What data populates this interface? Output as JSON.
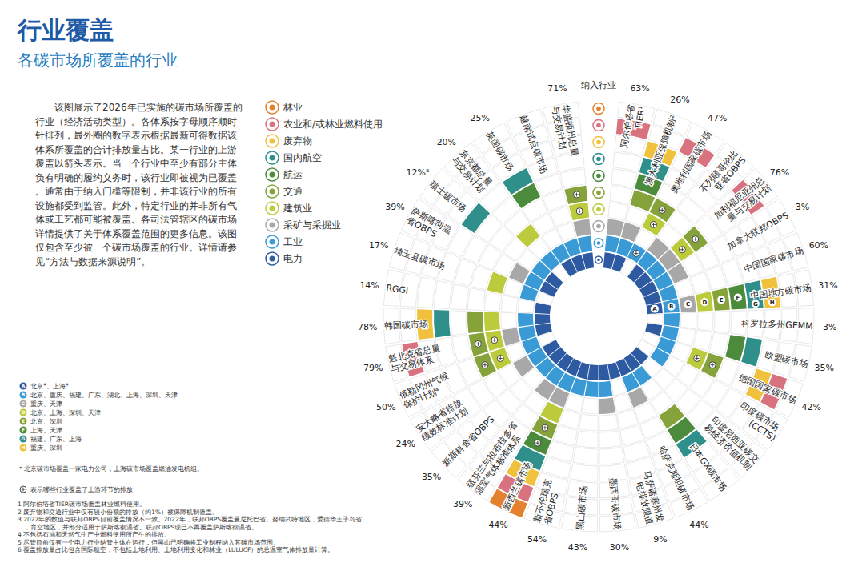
{
  "chart_data": {
    "type": "radial_matrix",
    "title": "行业覆盖",
    "subtitle": "各碳市场所覆盖的行业",
    "description": "该图展示了2026年已实施的碳市场所覆盖的行业（经济活动类型）。各体系按字母顺序顺时针排列，最外圈的数字表示根据最新可得数据该体系所覆盖的合计排放量占比。某一行业的上游覆盖以箭头表示。当一个行业中至少有部分主体负有明确的履约义务时，该行业即被视为已覆盖。通常由于纳入门槛等限制，并非该行业的所有设施都受到监管。此外，特定行业的并非所有气体或工艺都可能被覆盖。各司法管辖区的碳市场详情提供了关于体系覆盖范围的更多信息。该图仅包含至少被一个碳市场覆盖的行业。详情请参见“方法与数据来源说明”。",
    "header_label": "纳入行业",
    "sectors": [
      {
        "name": "电力",
        "color": "#2d5aa0"
      },
      {
        "name": "工业",
        "color": "#3a9ad6"
      },
      {
        "name": "采矿与采掘业",
        "color": "#a8a8a8"
      },
      {
        "name": "建筑业",
        "color": "#bccb3c"
      },
      {
        "name": "交通",
        "color": "#86a33b"
      },
      {
        "name": "航运",
        "color": "#4b8b3b"
      },
      {
        "name": "国内航空",
        "color": "#2f8f8a"
      },
      {
        "name": "废弃物",
        "color": "#efc13c"
      },
      {
        "name": "农业和/或林业燃料使用",
        "color": "#d9727f"
      },
      {
        "name": "林业",
        "color": "#e3812e"
      }
    ],
    "categories": [
      "阿尔伯塔省TIER¹",
      "澳大利亚保障机制²",
      "奥地利国家碳市场",
      "不列颠哥伦比亚省OBPS",
      "加利福尼亚州总量与交易计划",
      "加拿大联邦OBPS",
      "中国国家碳市场",
      "中国地方碳市场",
      "科罗拉多州GEMM",
      "欧盟碳市场",
      "德国国家碳市场",
      "印度碳市场 (CCTS)",
      "印度尼西亚碳交易经济价值机制",
      "日本GX碳市场",
      "哈萨克斯坦碳市场",
      "马萨诸塞州发电排放限值",
      "墨西哥碳市场",
      "黑山碳市场",
      "新不伦瑞克省OBPS",
      "新西兰碳市场",
      "纽芬兰与拉布拉多省温室气体标准体系",
      "新斯科舍省OBPS",
      "安大略省排放绩效标准计划",
      "俄勒冈州气候保护计划⁴",
      "魁北克省总量与交易体系",
      "韩国碳市场",
      "RGGI",
      "埼玉县碳市场",
      "萨斯喀彻温省OBPS",
      "瑞士碳市场",
      "东京都总量与交易计划",
      "英国碳市场",
      "越南试点碳市场",
      "华盛顿州总量与交易计划"
    ],
    "values": [
      63,
      26,
      47,
      null,
      76,
      3,
      60,
      31,
      3,
      35,
      42,
      null,
      null,
      null,
      44,
      9,
      30,
      43,
      54,
      44,
      39,
      35,
      24,
      50,
      79,
      78,
      14,
      17,
      39,
      12,
      20,
      25,
      null,
      71
    ],
    "value_labels": [
      "63%",
      "26%",
      "47%",
      null,
      "76%",
      "3%",
      "60%",
      "31%",
      "3%",
      "35%",
      "42%",
      null,
      null,
      null,
      "44%",
      "9%",
      "30%",
      "43%",
      "54%",
      "44%",
      "39%",
      "35%",
      "24%",
      "50%",
      "79%",
      "78%",
      "14%",
      "17%",
      "39%",
      "12%⁶",
      "20%",
      "25%",
      null,
      "71%"
    ],
    "coverage": [
      [
        1,
        1,
        1,
        0,
        0,
        0,
        0,
        0,
        1,
        0
      ],
      [
        1,
        1,
        1,
        0,
        1,
        1,
        1,
        1,
        0,
        0
      ],
      [
        0,
        1,
        0,
        1,
        1,
        0,
        0,
        0,
        1,
        0
      ],
      [
        1,
        1,
        1,
        0,
        0,
        0,
        0,
        0,
        0,
        0
      ],
      [
        1,
        1,
        1,
        1,
        1,
        0,
        0,
        0,
        1,
        0
      ],
      [
        1,
        1,
        1,
        0,
        0,
        0,
        0,
        0,
        0,
        0
      ],
      [
        1,
        1,
        0,
        0,
        0,
        0,
        0,
        0,
        0,
        0
      ],
      [
        1,
        1,
        1,
        1,
        1,
        1,
        1,
        1,
        0,
        0
      ],
      [
        0,
        1,
        0,
        0,
        0,
        0,
        0,
        0,
        0,
        0
      ],
      [
        1,
        1,
        0,
        0,
        0,
        1,
        1,
        0,
        0,
        0
      ],
      [
        0,
        1,
        0,
        1,
        1,
        0,
        0,
        1,
        1,
        0
      ],
      [
        0,
        1,
        0,
        0,
        0,
        0,
        0,
        0,
        0,
        0
      ],
      [
        1,
        0,
        0,
        0,
        0,
        0,
        0,
        0,
        0,
        0
      ],
      [
        1,
        1,
        0,
        0,
        1,
        1,
        1,
        0,
        0,
        0
      ],
      [
        1,
        1,
        1,
        0,
        0,
        0,
        0,
        0,
        0,
        0
      ],
      [
        1,
        0,
        0,
        0,
        0,
        0,
        0,
        0,
        0,
        0
      ],
      [
        1,
        1,
        1,
        0,
        0,
        0,
        0,
        0,
        0,
        0
      ],
      [
        1,
        1,
        0,
        0,
        0,
        0,
        0,
        0,
        0,
        0
      ],
      [
        1,
        1,
        0,
        0,
        0,
        0,
        0,
        0,
        0,
        0
      ],
      [
        1,
        1,
        1,
        1,
        1,
        1,
        1,
        1,
        1,
        1
      ],
      [
        1,
        1,
        1,
        0,
        0,
        0,
        0,
        0,
        0,
        0
      ],
      [
        1,
        1,
        0,
        0,
        0,
        0,
        0,
        0,
        0,
        0
      ],
      [
        1,
        1,
        1,
        0,
        0,
        0,
        0,
        0,
        0,
        0
      ],
      [
        0,
        1,
        0,
        1,
        1,
        0,
        0,
        0,
        0,
        0
      ],
      [
        1,
        1,
        1,
        1,
        1,
        0,
        0,
        0,
        1,
        0
      ],
      [
        1,
        1,
        0,
        1,
        1,
        0,
        1,
        1,
        0,
        0
      ],
      [
        1,
        0,
        0,
        0,
        0,
        0,
        0,
        0,
        0,
        0
      ],
      [
        0,
        1,
        0,
        1,
        0,
        0,
        0,
        0,
        0,
        0
      ],
      [
        1,
        1,
        1,
        0,
        0,
        0,
        0,
        0,
        0,
        0
      ],
      [
        1,
        1,
        0,
        0,
        0,
        0,
        1,
        0,
        0,
        0
      ],
      [
        0,
        1,
        0,
        1,
        0,
        0,
        0,
        0,
        0,
        0
      ],
      [
        1,
        1,
        0,
        0,
        0,
        1,
        1,
        0,
        0,
        0
      ],
      [
        1,
        1,
        0,
        0,
        0,
        0,
        0,
        0,
        0,
        0
      ],
      [
        1,
        1,
        1,
        1,
        1,
        0,
        0,
        0,
        0,
        0
      ]
    ],
    "upstream": [
      [],
      [],
      [
        1,
        3,
        4
      ],
      [],
      [
        3,
        4
      ],
      [],
      [],
      [],
      [],
      [],
      [
        3,
        4
      ],
      [],
      [],
      [],
      [],
      [],
      [],
      [],
      [],
      [
        4,
        5
      ],
      [],
      [],
      [],
      [
        3,
        4
      ],
      [
        3,
        4
      ],
      [],
      [],
      [],
      [],
      [],
      [],
      [],
      [],
      [
        3,
        4
      ]
    ],
    "upstream_note": "表示哪些行业覆盖了上游环节的排放",
    "china_local": {
      "market": "中国地方碳市场",
      "letters": [
        {
          "letter": "A",
          "sector": 0,
          "text": "北京*、上海*"
        },
        {
          "letter": "B",
          "sector": 1,
          "text": "北京、重庆、福建、广东、湖北、上海、深圳、天津"
        },
        {
          "letter": "C",
          "sector": 2,
          "text": "重庆、天津"
        },
        {
          "letter": "D",
          "sector": 3,
          "text": "北京、上海、深圳、天津"
        },
        {
          "letter": "E",
          "sector": 4,
          "text": "北京、深圳"
        },
        {
          "letter": "F",
          "sector": 5,
          "text": "上海、天津"
        },
        {
          "letter": "G",
          "sector": 6,
          "text": "福建、广东、上海"
        },
        {
          "letter": "H",
          "sector": 7,
          "text": "重庆、深圳"
        }
      ],
      "note": "* 北京碳市场覆盖一家电力公司，上海碳市场覆盖燃油发电机组。"
    },
    "footnotes": [
      "1 阿尔伯塔省TIER碳市场覆盖林业燃料使用。",
      "2 废弃物和交通行业中仅有较小份额的排放（约1%）被保障机制覆盖。",
      "3 2022年的数值与联邦OBPS目前覆盖情况不一致。2022年，联邦OBPS覆盖曼尼托巴省、努纳武特地区，爱德华王子岛省，育空地区，并部分适用于萨斯喀彻温省。联邦OBPS现已不再覆盖萨斯喀彻温省。",
      "4 不包括石油和天然气生产中燃料使用所产生的排放。",
      "5 尽管目前仅有一个电力行业纳管主体在运行，但黑山已明确将工业制程纳入其碳市场范围。",
      "6 覆盖排放量占比包含国际航空，不包括土地利用、土地利用变化和林业（LULUCF）的总温室气体排放量计算。"
    ]
  }
}
